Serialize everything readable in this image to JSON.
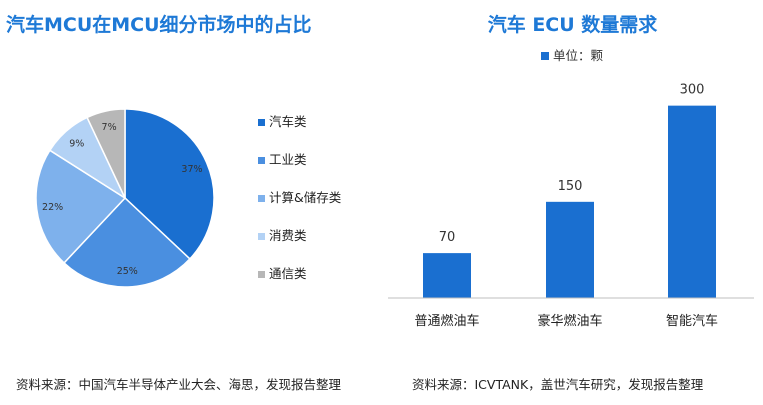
{
  "chart_data": [
    {
      "type": "pie",
      "title": "汽车MCU在MCU细分市场中的占比",
      "categories": [
        "汽车类",
        "工业类",
        "计算&储存类",
        "消费类",
        "通信类"
      ],
      "values": [
        37,
        25,
        22,
        9,
        7
      ],
      "value_labels": [
        "37%",
        "25%",
        "22%",
        "9%",
        "7%"
      ],
      "colors": [
        "#1a6fd0",
        "#4a8fe0",
        "#7eb1ec",
        "#b3d2f5",
        "#b7b7b7"
      ],
      "legend_position": "right",
      "source": "资料来源：中国汽车半导体产业大会、海思，发现报告整理"
    },
    {
      "type": "bar",
      "title": "汽车 ECU 数量需求",
      "categories": [
        "普通燃油车",
        "豪华燃油车",
        "智能汽车"
      ],
      "series": [
        {
          "name": "单位：颗",
          "values": [
            70,
            150,
            300
          ]
        }
      ],
      "value_labels": [
        "70",
        "150",
        "300"
      ],
      "ylim": [
        0,
        340
      ],
      "color": "#1a6fd0",
      "legend_position": "top",
      "grid": false,
      "source": "资料来源：ICVTANK，盖世汽车研究，发现报告整理"
    }
  ]
}
